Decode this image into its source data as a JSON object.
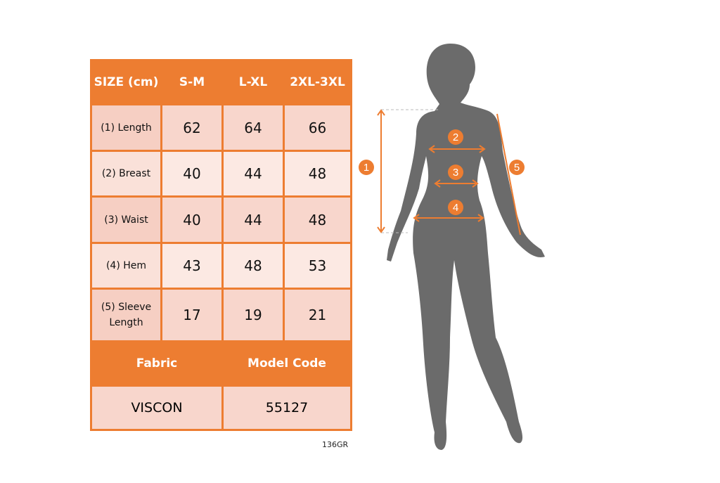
{
  "table": {
    "header": [
      "SIZE (cm)",
      "S-M",
      "L-XL",
      "2XL-3XL"
    ],
    "rows": [
      {
        "label": "(1) Length",
        "values": [
          "62",
          "64",
          "66"
        ]
      },
      {
        "label": "(2) Breast",
        "values": [
          "40",
          "44",
          "48"
        ]
      },
      {
        "label": "(3) Waist",
        "values": [
          "40",
          "44",
          "48"
        ]
      },
      {
        "label": "(4) Hem",
        "values": [
          "43",
          "48",
          "53"
        ]
      },
      {
        "label": "(5) Sleeve Length",
        "values": [
          "17",
          "19",
          "21"
        ]
      }
    ],
    "fabric_label": "Fabric",
    "model_code_label": "Model Code",
    "fabric": "VISCON",
    "model_code": "55127"
  },
  "product_code": "136GR",
  "figure": {
    "markers": [
      "1",
      "2",
      "3",
      "4",
      "5"
    ]
  },
  "colors": {
    "accent": "#ed7d31",
    "silhouette": "#6b6b6b",
    "row_dark": "#f8d6cc",
    "row_light": "#fce9e3"
  }
}
